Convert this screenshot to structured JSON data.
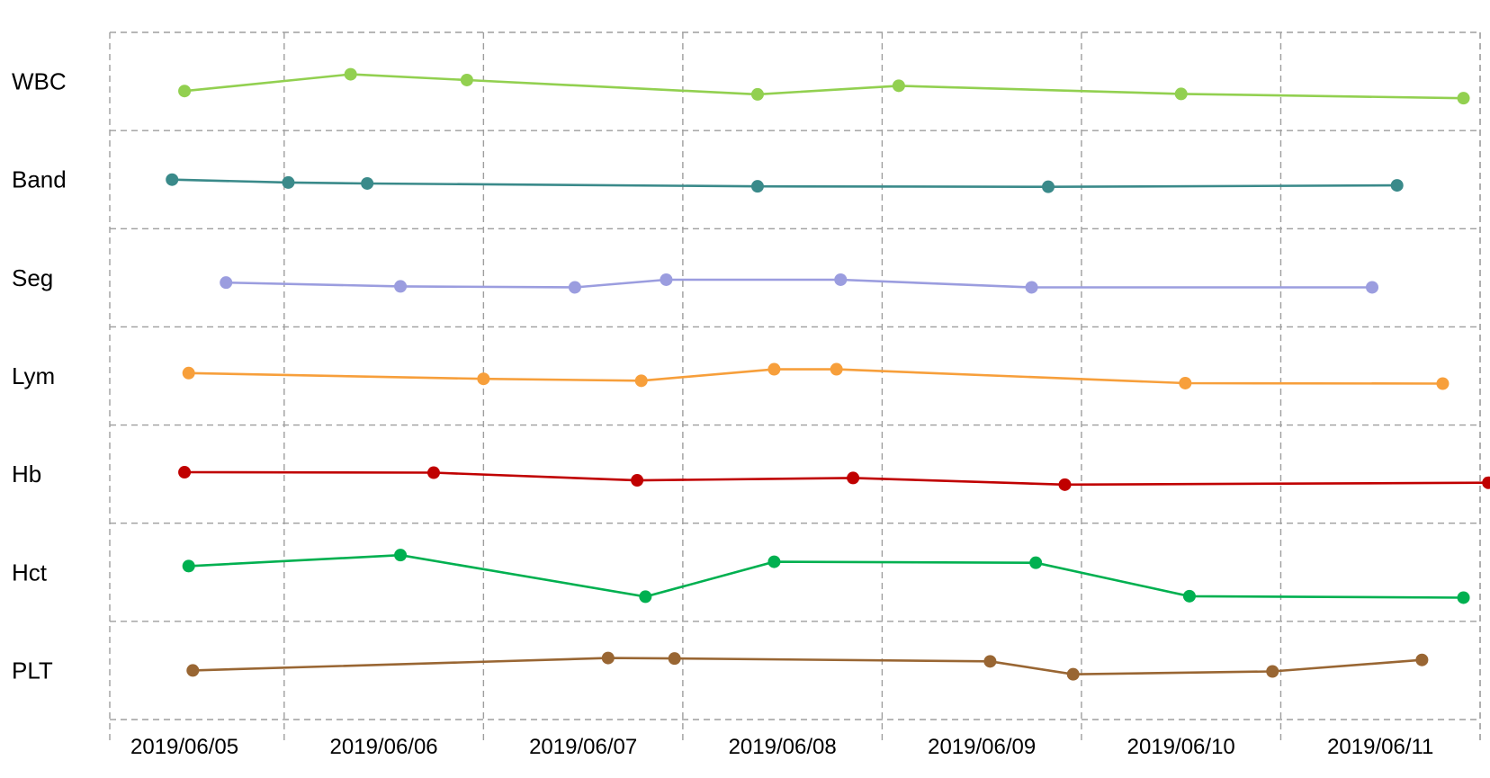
{
  "chart_data": {
    "type": "line",
    "x_ticks": [
      "2019/06/05",
      "2019/06/06",
      "2019/06/07",
      "2019/06/08",
      "2019/06/09",
      "2019/06/10",
      "2019/06/11"
    ],
    "xlim": [
      "2019/06/04 15:00",
      "2019/06/11 12:00"
    ],
    "grid": true,
    "legend": "none",
    "series": [
      {
        "name": "WBC",
        "color": "#92d050",
        "x": [
          "2019/06/05 00:00",
          "2019/06/05 20:00",
          "2019/06/06 10:00",
          "2019/06/07 21:00",
          "2019/06/08 14:00",
          "2019/06/10 00:00",
          "2019/06/11 10:00"
        ],
        "y": [
          0.3,
          0.65,
          0.53,
          0.23,
          0.41,
          0.24,
          0.15
        ]
      },
      {
        "name": "Band",
        "color": "#3a8a8a",
        "x": [
          "2019/06/04 22:30",
          "2019/06/05 12:30",
          "2019/06/05 22:00",
          "2019/06/07 21:00",
          "2019/06/09 08:00",
          "2019/06/11 02:00"
        ],
        "y": [
          0.5,
          0.44,
          0.42,
          0.36,
          0.35,
          0.38
        ]
      },
      {
        "name": "Seg",
        "color": "#9b9ddf",
        "x": [
          "2019/06/05 05:00",
          "2019/06/06 02:00",
          "2019/06/06 23:00",
          "2019/06/07 10:00",
          "2019/06/08 07:00",
          "2019/06/09 06:00",
          "2019/06/10 23:00"
        ],
        "y": [
          0.4,
          0.32,
          0.3,
          0.46,
          0.46,
          0.3,
          0.3
        ]
      },
      {
        "name": "Lym",
        "color": "#f79f3b",
        "x": [
          "2019/06/05 00:30",
          "2019/06/06 12:00",
          "2019/06/07 07:00",
          "2019/06/07 23:00",
          "2019/06/08 06:30",
          "2019/06/10 00:30",
          "2019/06/11 07:30"
        ],
        "y": [
          0.56,
          0.44,
          0.4,
          0.64,
          0.64,
          0.35,
          0.34
        ]
      },
      {
        "name": "Hb",
        "color": "#c00000",
        "x": [
          "2019/06/05 00:00",
          "2019/06/06 06:00",
          "2019/06/07 06:30",
          "2019/06/08 08:30",
          "2019/06/09 10:00",
          "2019/06/11 13:00"
        ],
        "y": [
          0.54,
          0.53,
          0.37,
          0.42,
          0.28,
          0.32
        ]
      },
      {
        "name": "Hct",
        "color": "#00b050",
        "x": [
          "2019/06/05 00:30",
          "2019/06/06 02:00",
          "2019/06/07 07:30",
          "2019/06/07 23:00",
          "2019/06/09 06:30",
          "2019/06/10 01:00",
          "2019/06/11 10:00"
        ],
        "y": [
          0.63,
          0.86,
          -0.01,
          0.72,
          0.7,
          0.0,
          -0.03
        ]
      },
      {
        "name": "PLT",
        "color": "#996633",
        "x": [
          "2019/06/05 01:00",
          "2019/06/07 03:00",
          "2019/06/07 11:00",
          "2019/06/09 01:00",
          "2019/06/09 11:00",
          "2019/06/10 11:00",
          "2019/06/11 05:00"
        ],
        "y": [
          0.5,
          0.76,
          0.75,
          0.69,
          0.42,
          0.48,
          0.72
        ]
      }
    ]
  }
}
